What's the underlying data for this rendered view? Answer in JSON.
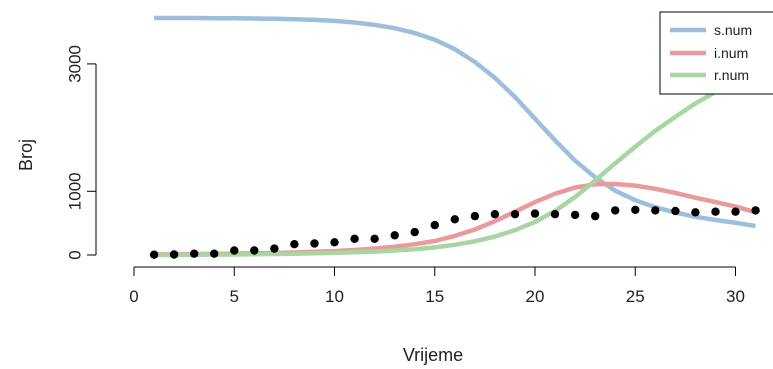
{
  "chart_data": {
    "type": "line",
    "title": "",
    "xlabel": "Vrijeme",
    "ylabel": "Broj",
    "xlim": [
      0,
      31
    ],
    "ylim": [
      0,
      3800
    ],
    "xticks": [
      0,
      5,
      10,
      15,
      20,
      25,
      30
    ],
    "yticks": [
      0,
      1000,
      3000
    ],
    "xtick_labels": [
      "0",
      "5",
      "10",
      "15",
      "20",
      "25",
      "30"
    ],
    "ytick_labels": [
      "0",
      "1000",
      "3000"
    ],
    "x": [
      1,
      2,
      3,
      4,
      5,
      6,
      7,
      8,
      9,
      10,
      11,
      12,
      13,
      14,
      15,
      16,
      17,
      18,
      19,
      20,
      21,
      22,
      23,
      24,
      25,
      26,
      27,
      28,
      29,
      30,
      31
    ],
    "series": [
      {
        "name": "s.num",
        "color": "#9dbfdc",
        "values": [
          3720,
          3720,
          3720,
          3718,
          3716,
          3712,
          3708,
          3700,
          3690,
          3675,
          3650,
          3612,
          3560,
          3485,
          3380,
          3230,
          3030,
          2780,
          2480,
          2140,
          1800,
          1480,
          1220,
          1010,
          860,
          750,
          665,
          600,
          550,
          505,
          455
        ]
      },
      {
        "name": "i.num",
        "color": "#e89a9c",
        "values": [
          10,
          12,
          15,
          18,
          22,
          26,
          32,
          40,
          50,
          62,
          78,
          100,
          130,
          170,
          220,
          300,
          400,
          530,
          680,
          830,
          960,
          1060,
          1110,
          1115,
          1090,
          1040,
          975,
          900,
          830,
          760,
          670
        ]
      },
      {
        "name": "r.num",
        "color": "#a8d5a2",
        "values": [
          0,
          2,
          4,
          6,
          8,
          11,
          15,
          20,
          26,
          33,
          42,
          54,
          70,
          90,
          120,
          160,
          215,
          290,
          390,
          520,
          690,
          910,
          1170,
          1440,
          1700,
          1950,
          2170,
          2380,
          2560,
          2700,
          2810
        ]
      }
    ],
    "observed": {
      "color": "#000000",
      "values": [
        5,
        8,
        20,
        20,
        70,
        70,
        100,
        170,
        180,
        200,
        255,
        255,
        310,
        360,
        470,
        560,
        610,
        640,
        640,
        650,
        640,
        630,
        610,
        700,
        710,
        700,
        690,
        670,
        680,
        680,
        700
      ]
    },
    "legend_position": "top-right"
  }
}
